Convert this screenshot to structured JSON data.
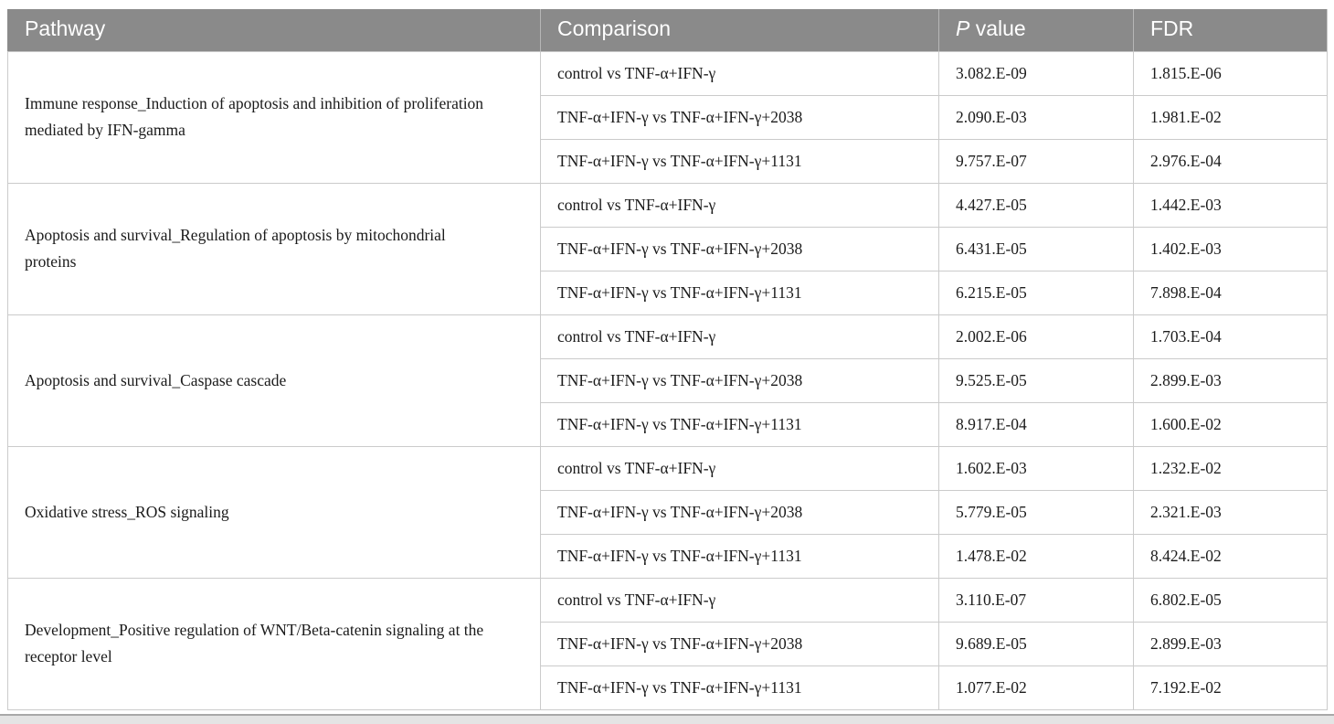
{
  "colors": {
    "header_bg": "#8a8a8a",
    "header_text": "#ffffff",
    "body_text": "#1b1b1b",
    "row_border": "#cbcbcb",
    "group_border": "#9b9b9b"
  },
  "table": {
    "header": {
      "pathway": "Pathway",
      "comparison": "Comparison",
      "p_italic": "P",
      "p_rest": " value",
      "fdr": "FDR"
    },
    "groups": [
      {
        "pathway": "Immune response_Induction of apoptosis and inhibition of proliferation mediated by IFN-gamma",
        "rows": [
          {
            "comparison": "control vs TNF-α+IFN-γ",
            "p_value": "3.082.E-09",
            "fdr": "1.815.E-06"
          },
          {
            "comparison": "TNF-α+IFN-γ vs TNF-α+IFN-γ+2038",
            "p_value": "2.090.E-03",
            "fdr": "1.981.E-02"
          },
          {
            "comparison": "TNF-α+IFN-γ vs TNF-α+IFN-γ+1131",
            "p_value": "9.757.E-07",
            "fdr": "2.976.E-04"
          }
        ]
      },
      {
        "pathway": "Apoptosis and survival_Regulation of apoptosis by mitochondrial proteins",
        "rows": [
          {
            "comparison": "control vs TNF-α+IFN-γ",
            "p_value": "4.427.E-05",
            "fdr": "1.442.E-03"
          },
          {
            "comparison": "TNF-α+IFN-γ vs TNF-α+IFN-γ+2038",
            "p_value": "6.431.E-05",
            "fdr": "1.402.E-03"
          },
          {
            "comparison": "TNF-α+IFN-γ vs TNF-α+IFN-γ+1131",
            "p_value": "6.215.E-05",
            "fdr": "7.898.E-04"
          }
        ]
      },
      {
        "pathway": "Apoptosis and survival_Caspase cascade",
        "rows": [
          {
            "comparison": "control vs TNF-α+IFN-γ",
            "p_value": "2.002.E-06",
            "fdr": "1.703.E-04"
          },
          {
            "comparison": "TNF-α+IFN-γ vs TNF-α+IFN-γ+2038",
            "p_value": "9.525.E-05",
            "fdr": "2.899.E-03"
          },
          {
            "comparison": "TNF-α+IFN-γ vs TNF-α+IFN-γ+1131",
            "p_value": "8.917.E-04",
            "fdr": "1.600.E-02"
          }
        ]
      },
      {
        "pathway": "Oxidative stress_ROS signaling",
        "rows": [
          {
            "comparison": "control vs TNF-α+IFN-γ",
            "p_value": "1.602.E-03",
            "fdr": "1.232.E-02"
          },
          {
            "comparison": "TNF-α+IFN-γ vs TNF-α+IFN-γ+2038",
            "p_value": "5.779.E-05",
            "fdr": "2.321.E-03"
          },
          {
            "comparison": "TNF-α+IFN-γ vs TNF-α+IFN-γ+1131",
            "p_value": "1.478.E-02",
            "fdr": "8.424.E-02"
          }
        ]
      },
      {
        "pathway": "Development_Positive regulation of WNT/Beta-catenin signaling at the receptor level",
        "rows": [
          {
            "comparison": "control vs TNF-α+IFN-γ",
            "p_value": "3.110.E-07",
            "fdr": "6.802.E-05"
          },
          {
            "comparison": "TNF-α+IFN-γ vs TNF-α+IFN-γ+2038",
            "p_value": "9.689.E-05",
            "fdr": "2.899.E-03"
          },
          {
            "comparison": "TNF-α+IFN-γ vs TNF-α+IFN-γ+1131",
            "p_value": "1.077.E-02",
            "fdr": "7.192.E-02"
          }
        ]
      }
    ]
  }
}
